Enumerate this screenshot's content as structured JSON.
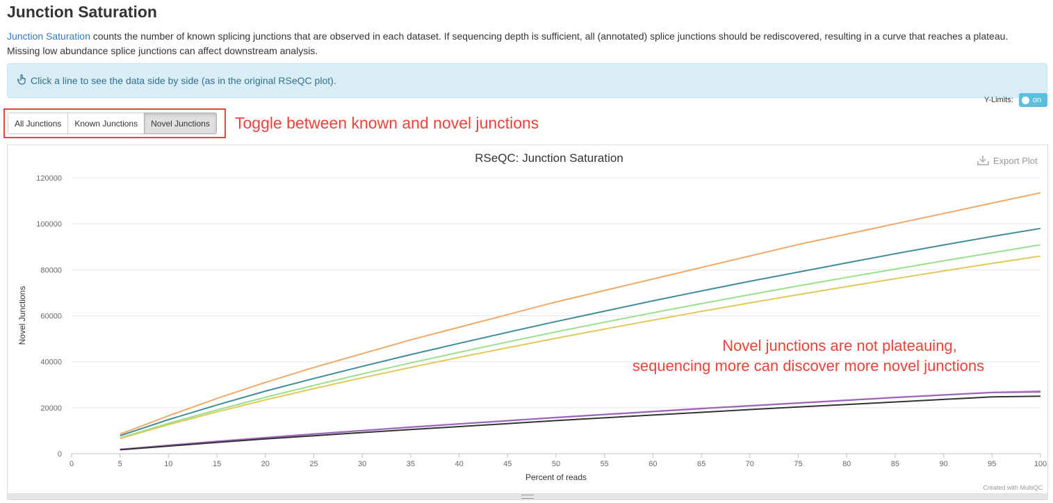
{
  "section": {
    "title": "Junction Saturation",
    "intro_link": "Junction Saturation",
    "intro_text": " counts the number of known splicing junctions that are observed in each dataset. If sequencing depth is sufficient, all (annotated) splice junctions should be rediscovered, resulting in a curve that reaches a plateau. Missing low abundance splice junctions can affect downstream analysis."
  },
  "info": {
    "icon": "hand-pointer-icon",
    "text": "Click a line to see the data side by side (as in the original RSeQC plot)."
  },
  "ylimits": {
    "label": "Y-Limits:",
    "toggle_text": "on"
  },
  "buttons": {
    "all": "All Junctions",
    "known": "Known Junctions",
    "novel": "Novel Junctions"
  },
  "annotations": {
    "toggle_note": "Toggle between known and novel junctions",
    "plateau_note_line1": "Novel junctions are not plateauing,",
    "plateau_note_line2": "sequencing more can discover more novel junctions",
    "color": "#e8433b"
  },
  "plot": {
    "export_label": "Export Plot",
    "credit": "Created with MultiQC"
  },
  "chart_data": {
    "type": "line",
    "title": "RSeQC: Junction Saturation",
    "xlabel": "Percent of reads",
    "ylabel": "Novel Junctions",
    "xlim": [
      0,
      100
    ],
    "ylim": [
      0,
      120000
    ],
    "x_ticks": [
      0,
      5,
      10,
      15,
      20,
      25,
      30,
      35,
      40,
      45,
      50,
      55,
      60,
      65,
      70,
      75,
      80,
      85,
      90,
      95,
      100
    ],
    "y_ticks": [
      0,
      20000,
      40000,
      60000,
      80000,
      100000,
      120000
    ],
    "grid": true,
    "legend": "none",
    "x": [
      5,
      10,
      15,
      20,
      25,
      30,
      35,
      40,
      45,
      50,
      55,
      60,
      65,
      70,
      75,
      80,
      85,
      90,
      95,
      100
    ],
    "series": [
      {
        "color": "#f0a868",
        "values": [
          8500,
          16500,
          24000,
          31000,
          37500,
          43500,
          49500,
          55000,
          60500,
          66000,
          71000,
          76000,
          81000,
          86000,
          91000,
          95500,
          100000,
          104500,
          109000,
          113500
        ]
      },
      {
        "color": "#3f8b96",
        "values": [
          7800,
          14800,
          21200,
          27200,
          32700,
          38000,
          43100,
          48000,
          52800,
          57500,
          62000,
          66500,
          70800,
          75000,
          79000,
          83000,
          87000,
          90800,
          94500,
          98000
        ]
      },
      {
        "color": "#98df8a",
        "values": [
          6800,
          13200,
          19000,
          24500,
          29700,
          34700,
          39500,
          44100,
          48600,
          53000,
          57200,
          61300,
          65300,
          69200,
          73000,
          76700,
          80300,
          83900,
          87400,
          90900
        ]
      },
      {
        "color": "#e0c85a",
        "values": [
          6600,
          12600,
          18200,
          23400,
          28300,
          33000,
          37500,
          41900,
          46100,
          50200,
          54200,
          58100,
          61900,
          65600,
          69200,
          72700,
          76100,
          79500,
          82800,
          86000
        ]
      },
      {
        "color": "#e377c2",
        "values": [
          1900,
          3700,
          5400,
          7000,
          8600,
          10100,
          11600,
          13000,
          14400,
          15800,
          17100,
          18400,
          19700,
          20900,
          22100,
          23300,
          24500,
          25600,
          26700,
          27200
        ]
      },
      {
        "color": "#9467bd",
        "values": [
          1800,
          3600,
          5300,
          6900,
          8500,
          10000,
          11500,
          12900,
          14300,
          15700,
          17000,
          18300,
          19600,
          20800,
          22000,
          23200,
          24400,
          25500,
          26600,
          26800
        ]
      },
      {
        "color": "#333333",
        "values": [
          1700,
          3300,
          4900,
          6400,
          7800,
          9200,
          10500,
          11800,
          13100,
          14400,
          15600,
          16800,
          18000,
          19200,
          20300,
          21400,
          22500,
          23600,
          24700,
          25000
        ]
      }
    ]
  }
}
